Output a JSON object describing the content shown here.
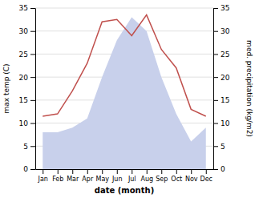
{
  "chart_data": {
    "type": "line",
    "categories": [
      "Jan",
      "Feb",
      "Mar",
      "Apr",
      "May",
      "Jun",
      "Jul",
      "Aug",
      "Sep",
      "Oct",
      "Nov",
      "Dec"
    ],
    "xlabel": "date (month)",
    "ylabel": "max temp (C)",
    "y2label": "med. precipitation (kg/m2)",
    "series": [
      {
        "type": "area",
        "axis": "y2",
        "color": "#c8d0eb",
        "values": [
          8.0,
          8.0,
          9.0,
          11.0,
          20.0,
          28.0,
          33.0,
          30.0,
          20.0,
          12.0,
          6.0,
          9.0
        ]
      },
      {
        "type": "line",
        "color": "#c0504d",
        "values": [
          11.5,
          12.0,
          17.0,
          23.0,
          32.0,
          32.5,
          29.0,
          33.5,
          26.0,
          22.0,
          13.0,
          11.5
        ]
      }
    ],
    "ylim": [
      0,
      35
    ],
    "yticks": [
      0,
      5,
      10,
      15,
      20,
      25,
      30,
      35
    ],
    "y2lim": [
      0,
      35
    ],
    "y2ticks": [
      0,
      5,
      10,
      15,
      20,
      25,
      30,
      35
    ],
    "grid": true
  }
}
